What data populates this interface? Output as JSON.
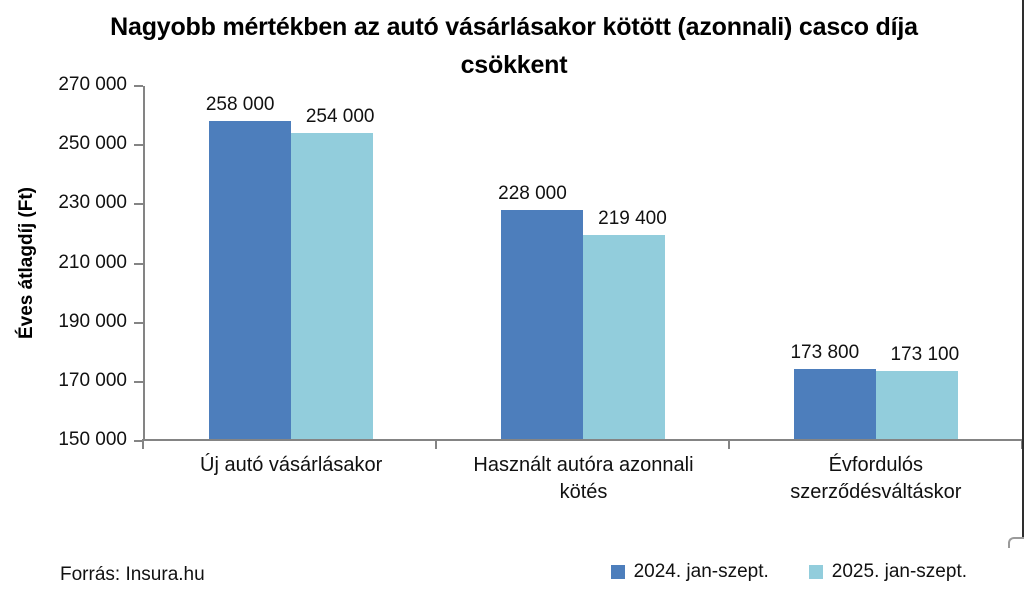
{
  "page": {
    "source_note": "Forrás: Insura.hu"
  },
  "chart_data": {
    "type": "bar",
    "title": "Nagyobb mértékben az autó vásárlásakor kötött (azonnali) casco díja csökkent",
    "xlabel": "",
    "ylabel": "Éves átlagdíj (Ft)",
    "ylim": [
      150000,
      270000
    ],
    "ytick_step": 20000,
    "yticks": [
      {
        "value": 270000,
        "label": "270 000"
      },
      {
        "value": 250000,
        "label": "250 000"
      },
      {
        "value": 230000,
        "label": "230 000"
      },
      {
        "value": 210000,
        "label": "210 000"
      },
      {
        "value": 190000,
        "label": "190 000"
      },
      {
        "value": 170000,
        "label": "170 000"
      },
      {
        "value": 150000,
        "label": "150 000"
      }
    ],
    "categories": [
      "Új autó vásárlásakor",
      "Használt autóra azonnali kötés",
      "Évfordulós szerződésváltáskor"
    ],
    "series": [
      {
        "name": "2024. jan-szept.",
        "color": "#4D7EBC",
        "values": [
          258000,
          228000,
          173800
        ],
        "value_labels": [
          "258 000",
          "228 000",
          "173 800"
        ]
      },
      {
        "name": "2025. jan-szept.",
        "color": "#92CDDC",
        "values": [
          254000,
          219400,
          173100
        ],
        "value_labels": [
          "254 000",
          "219 400",
          "173 100"
        ]
      }
    ],
    "grid": false,
    "legend_position": "bottom-right",
    "axis_color": "#848484"
  }
}
